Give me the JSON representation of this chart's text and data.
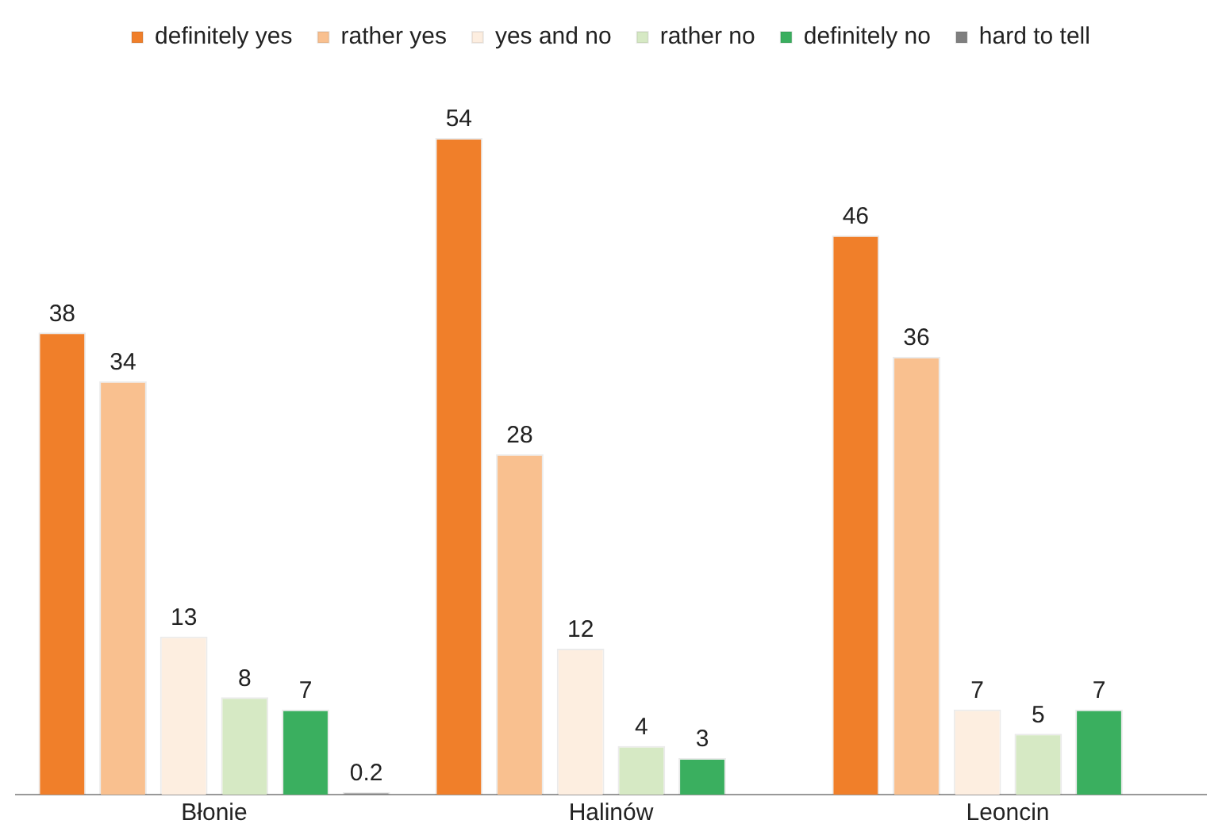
{
  "chart_data": {
    "type": "bar",
    "categories": [
      "Błonie",
      "Halinów",
      "Leoncin"
    ],
    "series": [
      {
        "name": "definitely yes",
        "color": "#f07f2a",
        "values": [
          38,
          54,
          46
        ]
      },
      {
        "name": "rather yes",
        "color": "#f9c08f",
        "values": [
          34,
          28,
          36
        ]
      },
      {
        "name": "yes and no",
        "color": "#fdeee0",
        "values": [
          13,
          12,
          7
        ]
      },
      {
        "name": "rather no",
        "color": "#d6e9c4",
        "values": [
          8,
          4,
          5
        ]
      },
      {
        "name": "definitely no",
        "color": "#3aaf5f",
        "values": [
          7,
          3,
          7
        ]
      },
      {
        "name": "hard to tell",
        "color": "#7f7f7f",
        "values": [
          0.2,
          null,
          null
        ]
      }
    ],
    "data_labels": true,
    "legend": "top",
    "grid": false,
    "tick_labels": "x"
  }
}
